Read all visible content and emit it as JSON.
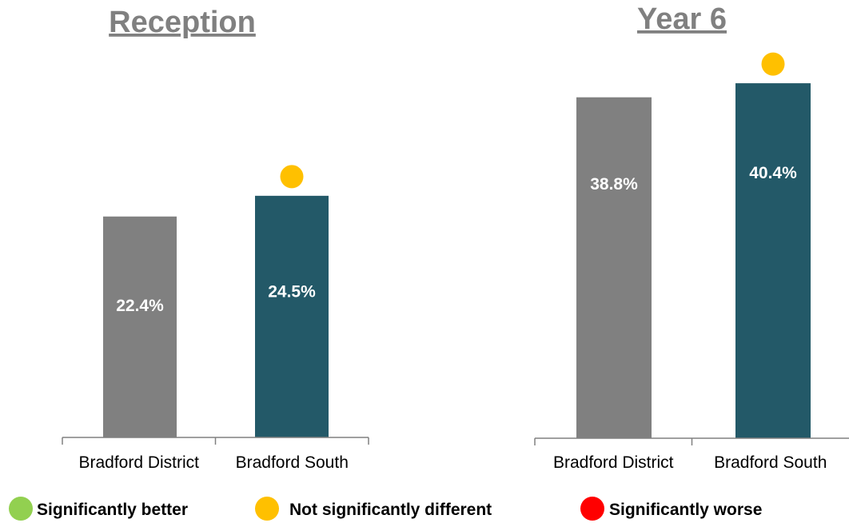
{
  "chart_data": [
    {
      "type": "bar",
      "title": "Reception",
      "categories": [
        "Bradford District",
        "Bradford South"
      ],
      "values": [
        22.4,
        24.5
      ],
      "data_labels": [
        "22.4%",
        "24.5%"
      ],
      "bar_colors": [
        "#808080",
        "#235968"
      ],
      "significance": [
        null,
        "not-significantly-different"
      ],
      "ylim": [
        0,
        30
      ],
      "grid": false
    },
    {
      "type": "bar",
      "title": "Year 6",
      "categories": [
        "Bradford District",
        "Bradford South"
      ],
      "values": [
        38.8,
        40.4
      ],
      "data_labels": [
        "38.8%",
        "40.4%"
      ],
      "bar_colors": [
        "#808080",
        "#235968"
      ],
      "significance": [
        null,
        "not-significantly-different"
      ],
      "ylim": [
        0,
        41.5
      ],
      "grid": false
    }
  ],
  "legend": {
    "placement": "bottom",
    "items": [
      {
        "key": "significantly-better",
        "label": "Significantly better",
        "color": "#92d050",
        "icon": "green-circle-icon"
      },
      {
        "key": "not-significantly-different",
        "label": "Not significantly different",
        "color": "#ffc000",
        "icon": "amber-circle-icon"
      },
      {
        "key": "significantly-worse",
        "label": "Significantly worse",
        "color": "#ff0000",
        "icon": "red-circle-icon"
      }
    ]
  }
}
